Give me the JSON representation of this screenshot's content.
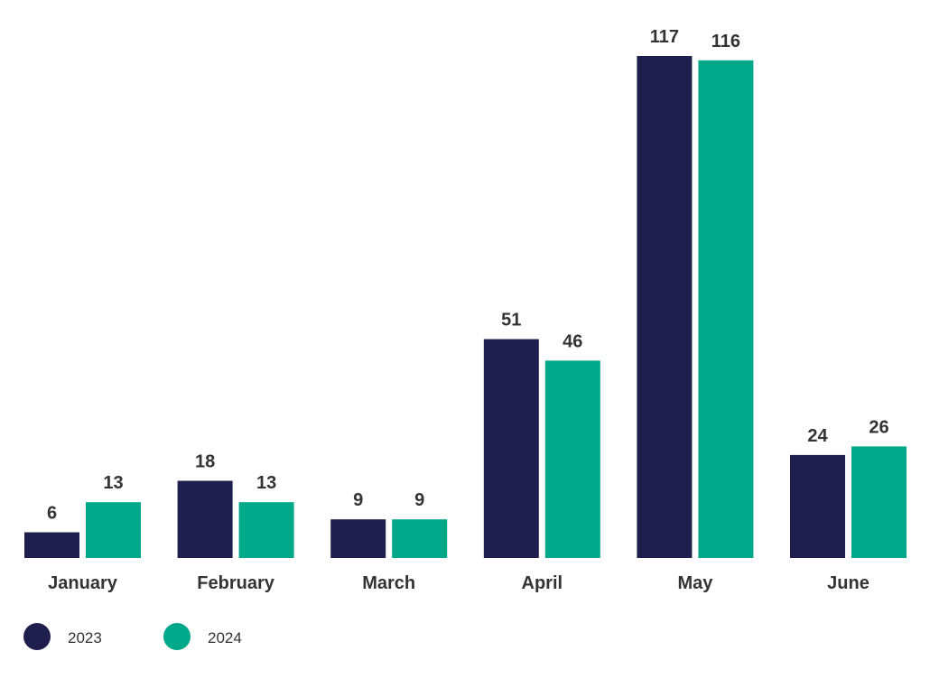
{
  "chart_data": {
    "type": "bar",
    "title": "",
    "xlabel": "",
    "ylabel": "",
    "categories": [
      "January",
      "February",
      "March",
      "April",
      "May",
      "June"
    ],
    "series": [
      {
        "name": "2023",
        "color": "#1f1f4d",
        "values": [
          6,
          18,
          9,
          51,
          117,
          24
        ]
      },
      {
        "name": "2024",
        "color": "#00a88a",
        "values": [
          13,
          13,
          9,
          46,
          116,
          26
        ]
      }
    ],
    "ylim": [
      0,
      117
    ],
    "grid": false,
    "data_labels": true,
    "legend_position": "bottom-left"
  }
}
